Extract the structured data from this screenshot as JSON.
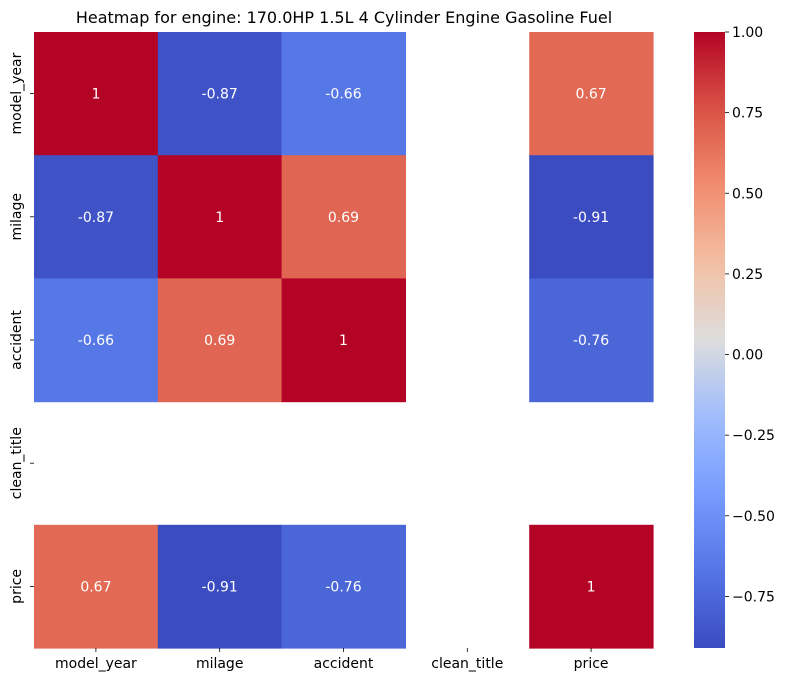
{
  "chart_data": {
    "type": "heatmap",
    "title": "Heatmap for engine: 170.0HP 1.5L 4 Cylinder Engine Gasoline Fuel",
    "x_labels": [
      "model_year",
      "milage",
      "accident",
      "clean_title",
      "price"
    ],
    "y_labels": [
      "model_year",
      "milage",
      "accident",
      "clean_title",
      "price"
    ],
    "values": [
      [
        1,
        -0.87,
        -0.66,
        null,
        0.67
      ],
      [
        -0.87,
        1,
        0.69,
        null,
        -0.91
      ],
      [
        -0.66,
        0.69,
        1,
        null,
        -0.76
      ],
      [
        null,
        null,
        null,
        null,
        null
      ],
      [
        0.67,
        -0.91,
        -0.76,
        null,
        1
      ]
    ],
    "annotations": [
      [
        "1",
        "-0.87",
        "-0.66",
        "",
        "0.67"
      ],
      [
        "-0.87",
        "1",
        "0.69",
        "",
        "-0.91"
      ],
      [
        "-0.66",
        "0.69",
        "1",
        "",
        "-0.76"
      ],
      [
        "",
        "",
        "",
        "",
        ""
      ],
      [
        "0.67",
        "-0.91",
        "-0.76",
        "",
        "1"
      ]
    ],
    "colormap": "coolwarm",
    "colorbar": {
      "vmin": -0.91,
      "vmax": 1.0,
      "ticks": [
        1.0,
        0.75,
        0.5,
        0.25,
        0.0,
        -0.25,
        -0.5,
        -0.75
      ],
      "tick_labels": [
        "1.00",
        "0.75",
        "0.50",
        "0.25",
        "0.00",
        "−0.25",
        "−0.50",
        "−0.75"
      ]
    },
    "missing_color": "#ffffff",
    "grid": false
  }
}
